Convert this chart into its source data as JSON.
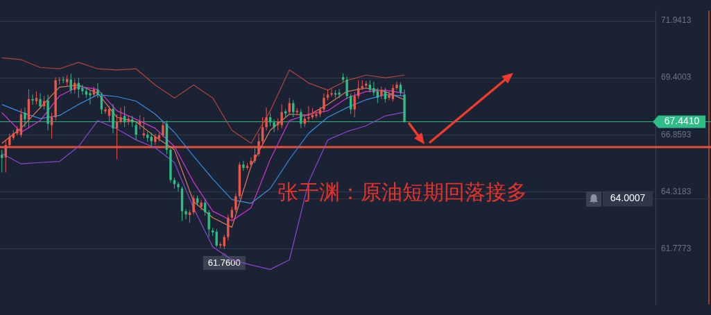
{
  "chart_data": {
    "type": "candlestick",
    "categories": [
      null,
      null,
      null,
      null,
      null,
      null,
      null,
      null,
      null,
      null,
      null,
      null,
      null,
      null,
      null,
      null,
      null,
      null,
      null,
      null,
      null,
      null,
      null,
      null,
      null,
      null,
      null,
      null,
      null,
      null,
      null,
      null,
      null,
      null,
      null,
      null,
      null,
      null,
      null,
      null,
      null,
      null,
      null,
      null,
      null,
      null,
      null,
      null,
      null,
      null,
      null,
      null,
      null,
      null,
      null,
      null,
      null,
      null,
      null,
      null,
      null,
      null,
      null,
      null,
      null,
      null,
      null,
      null,
      null,
      null,
      null,
      null,
      null,
      null,
      null,
      null,
      null,
      null,
      null,
      null,
      null,
      null,
      null,
      null,
      null,
      null,
      null,
      null,
      null,
      null,
      null,
      null,
      null,
      null,
      null,
      null,
      null,
      null,
      null,
      null,
      null,
      null,
      null,
      null,
      null,
      null,
      null,
      null,
      null,
      null,
      null,
      null,
      null,
      null,
      null,
      null,
      null,
      null,
      null,
      null,
      null,
      null,
      null,
      null,
      null,
      null,
      null,
      null,
      null,
      null,
      null,
      null,
      null,
      null,
      null,
      null,
      null,
      null,
      null,
      null,
      null,
      null,
      null,
      null,
      null,
      null,
      null,
      null,
      null,
      null,
      null,
      null,
      null,
      null,
      null,
      null,
      null,
      null,
      null,
      null,
      null,
      null,
      null,
      null,
      null,
      null,
      null,
      null,
      null,
      null,
      null
    ],
    "ohlc": [
      [
        65.97,
        66.19,
        65.18,
        65.82
      ],
      [
        65.85,
        66.63,
        65.18,
        66.4
      ],
      [
        66.4,
        66.92,
        66.28,
        66.77
      ],
      [
        66.72,
        67.06,
        66.63,
        66.92
      ],
      [
        66.92,
        67.25,
        66.85,
        67.12
      ],
      [
        66.86,
        68.02,
        66.75,
        67.78
      ],
      [
        67.84,
        68.07,
        67.2,
        67.55
      ],
      [
        67.55,
        68.88,
        67.15,
        68.45
      ],
      [
        68.45,
        68.65,
        68.2,
        68.39
      ],
      [
        68.36,
        68.8,
        68.2,
        68.5
      ],
      [
        68.45,
        68.71,
        68.02,
        68.13
      ],
      [
        68.13,
        68.59,
        67.98,
        68.36
      ],
      [
        68.39,
        68.65,
        67.06,
        67.35
      ],
      [
        67.29,
        67.84,
        66.69,
        67.64
      ],
      [
        67.64,
        69.43,
        67.49,
        69.29
      ],
      [
        69.29,
        69.43,
        69.1,
        69.32
      ],
      [
        69.32,
        69.46,
        69.15,
        69.3
      ],
      [
        69.2,
        69.52,
        69.05,
        69.35
      ],
      [
        69.32,
        69.58,
        68.7,
        68.86
      ],
      [
        68.86,
        69.35,
        68.7,
        69.17
      ],
      [
        69.17,
        69.4,
        68.51,
        68.88
      ],
      [
        68.95,
        69.1,
        68.65,
        68.8
      ],
      [
        68.8,
        68.95,
        68.5,
        68.65
      ],
      [
        68.71,
        68.85,
        68.22,
        68.62
      ],
      [
        68.65,
        69.0,
        68.55,
        68.88
      ],
      [
        68.86,
        69.17,
        68.5,
        68.65
      ],
      [
        68.59,
        68.75,
        67.78,
        67.99
      ],
      [
        67.9,
        68.1,
        67.8,
        67.99
      ],
      [
        67.7,
        68.15,
        67.44,
        68.02
      ],
      [
        68.02,
        68.22,
        66.92,
        67.15
      ],
      [
        67.15,
        67.78,
        65.76,
        67.44
      ],
      [
        67.44,
        68.07,
        67.35,
        67.64
      ],
      [
        67.7,
        68.13,
        67.2,
        67.41
      ],
      [
        67.44,
        67.73,
        67.3,
        67.58
      ],
      [
        67.55,
        67.7,
        67.2,
        67.41
      ],
      [
        67.29,
        67.49,
        66.63,
        66.86
      ],
      [
        67.32,
        67.73,
        67.1,
        67.44
      ],
      [
        66.83,
        67.64,
        66.7,
        66.92
      ],
      [
        66.86,
        67.0,
        66.55,
        66.72
      ],
      [
        66.77,
        66.95,
        66.34,
        66.57
      ],
      [
        66.54,
        66.9,
        66.4,
        66.77
      ],
      [
        66.69,
        66.95,
        66.55,
        66.83
      ],
      [
        66.83,
        67.44,
        66.75,
        67.29
      ],
      [
        67.35,
        67.49,
        65.99,
        66.19
      ],
      [
        66.19,
        66.25,
        64.72,
        64.84
      ],
      [
        64.84,
        64.95,
        64.46,
        64.66
      ],
      [
        64.66,
        64.75,
        64.32,
        64.52
      ],
      [
        64.46,
        64.55,
        63.02,
        63.45
      ],
      [
        63.45,
        63.55,
        63.1,
        63.31
      ],
      [
        63.28,
        63.5,
        62.93,
        63.4
      ],
      [
        63.4,
        64.17,
        63.3,
        64.03
      ],
      [
        64.03,
        64.15,
        63.7,
        63.83
      ],
      [
        63.65,
        63.95,
        63.5,
        63.83
      ],
      [
        63.83,
        64.0,
        63.25,
        63.4
      ],
      [
        63.4,
        63.5,
        62.3,
        62.64
      ],
      [
        62.59,
        62.7,
        62.35,
        62.5
      ],
      [
        62.53,
        62.65,
        61.85,
        61.92
      ],
      [
        61.92,
        62.05,
        61.8,
        61.98
      ],
      [
        61.89,
        62.4,
        61.76,
        62.3
      ],
      [
        62.3,
        63.3,
        62.15,
        63.16
      ],
      [
        63.16,
        63.65,
        63.05,
        63.51
      ],
      [
        63.51,
        64.25,
        63.4,
        64.12
      ],
      [
        64.12,
        65.65,
        64.0,
        65.53
      ],
      [
        65.53,
        65.7,
        65.25,
        65.38
      ],
      [
        65.38,
        65.6,
        65.3,
        65.47
      ],
      [
        65.53,
        65.85,
        65.4,
        65.7
      ],
      [
        65.7,
        66.25,
        65.6,
        65.97
      ],
      [
        66.0,
        66.92,
        65.9,
        66.57
      ],
      [
        66.57,
        67.64,
        66.45,
        67.2
      ],
      [
        67.2,
        68.07,
        67.05,
        67.64
      ],
      [
        67.64,
        67.84,
        67.25,
        67.41
      ],
      [
        67.41,
        67.55,
        66.98,
        67.2
      ],
      [
        67.29,
        67.6,
        67.06,
        67.44
      ],
      [
        67.29,
        68.22,
        67.15,
        67.87
      ],
      [
        67.9,
        68.0,
        67.65,
        67.81
      ],
      [
        67.87,
        68.51,
        67.75,
        68.27
      ],
      [
        68.27,
        68.4,
        67.64,
        67.87
      ],
      [
        67.87,
        68.05,
        67.75,
        67.93
      ],
      [
        67.87,
        68.0,
        67.15,
        67.35
      ],
      [
        67.35,
        67.75,
        67.2,
        67.58
      ],
      [
        67.58,
        68.13,
        67.45,
        67.64
      ],
      [
        67.64,
        68.05,
        67.55,
        67.75
      ],
      [
        67.7,
        67.95,
        67.6,
        67.78
      ],
      [
        67.78,
        68.1,
        67.65,
        67.99
      ],
      [
        67.99,
        68.7,
        67.85,
        68.51
      ],
      [
        68.51,
        68.88,
        68.4,
        68.65
      ],
      [
        68.65,
        68.9,
        68.55,
        68.71
      ],
      [
        68.71,
        68.85,
        68.5,
        68.65
      ],
      [
        68.74,
        68.9,
        68.5,
        68.65
      ],
      [
        69.43,
        69.6,
        69.2,
        69.32
      ],
      [
        69.32,
        69.45,
        68.45,
        68.59
      ],
      [
        68.59,
        68.7,
        67.78,
        67.99
      ],
      [
        67.99,
        68.75,
        67.64,
        68.59
      ],
      [
        68.59,
        69.29,
        68.45,
        68.94
      ],
      [
        68.94,
        69.29,
        68.85,
        69.03
      ],
      [
        69.05,
        69.25,
        68.95,
        69.14
      ],
      [
        69.09,
        69.29,
        68.75,
        68.86
      ],
      [
        68.94,
        69.23,
        68.6,
        68.74
      ],
      [
        68.8,
        68.95,
        68.27,
        68.51
      ],
      [
        68.59,
        69.0,
        68.45,
        68.86
      ],
      [
        68.8,
        68.95,
        68.3,
        68.45
      ],
      [
        68.51,
        68.8,
        68.4,
        68.65
      ],
      [
        68.45,
        69.1,
        68.35,
        68.94
      ],
      [
        68.94,
        69.23,
        68.85,
        69.09
      ],
      [
        69.09,
        69.2,
        68.6,
        68.74
      ],
      [
        68.65,
        68.88,
        67.4,
        67.441
      ],
      null,
      null,
      null,
      null,
      null,
      null,
      null,
      null,
      null,
      null,
      null,
      null,
      null,
      null,
      null,
      null,
      null,
      null,
      null,
      null,
      null,
      null,
      null,
      null,
      null,
      null,
      null,
      null,
      null,
      null,
      null,
      null,
      null,
      null,
      null,
      null,
      null,
      null,
      null,
      null,
      null,
      null,
      null,
      null,
      null,
      null,
      null,
      null,
      null,
      null,
      null,
      null,
      null,
      null,
      null,
      null,
      null,
      null,
      null,
      null,
      null,
      null,
      null,
      null,
      null
    ],
    "series": [
      {
        "type": "line",
        "color": "#b5443a",
        "values": [
          70.29,
          null,
          null,
          null,
          null,
          70.21,
          null,
          null,
          null,
          null,
          69.86,
          null,
          null,
          null,
          null,
          69.8,
          null,
          null,
          null,
          null,
          70.09,
          null,
          null,
          null,
          null,
          69.8,
          null,
          null,
          null,
          null,
          69.75,
          null,
          null,
          null,
          null,
          69.8,
          null,
          null,
          null,
          null,
          69.08,
          null,
          null,
          null,
          null,
          68.5,
          null,
          null,
          null,
          null,
          69.08,
          null,
          null,
          null,
          null,
          68.5,
          null,
          null,
          null,
          null,
          67.06,
          null,
          null,
          null,
          null,
          66.48,
          null,
          null,
          null,
          null,
          67.93,
          null,
          null,
          null,
          null,
          69.75,
          null,
          null,
          null,
          null,
          69.17,
          null,
          null,
          null,
          null,
          68.85,
          null,
          null,
          null,
          null,
          69.28,
          null,
          null,
          null,
          null,
          69.52,
          null,
          null,
          null,
          null,
          69.4,
          null,
          null,
          null,
          null,
          69.52,
          null,
          null,
          null,
          null,
          null,
          null,
          null,
          null,
          null,
          null,
          null,
          null,
          null,
          null,
          null,
          null,
          null,
          null,
          null,
          null,
          null,
          null,
          null,
          null,
          null,
          null,
          null,
          null,
          null,
          null,
          null,
          null,
          null,
          null,
          null,
          null,
          null,
          null,
          null,
          null,
          null,
          null,
          null,
          null,
          null,
          null,
          null,
          null,
          null,
          null,
          null,
          null,
          null,
          null,
          null,
          null,
          null,
          null,
          null,
          null,
          null,
          null,
          null,
          null,
          null
        ]
      },
      {
        "type": "line",
        "color": "#8b46d6",
        "values": [
          66.02,
          null,
          null,
          null,
          null,
          65.56,
          null,
          null,
          null,
          null,
          65.62,
          null,
          null,
          null,
          null,
          65.67,
          null,
          null,
          null,
          null,
          66.34,
          null,
          null,
          null,
          null,
          67.49,
          null,
          null,
          null,
          null,
          67.12,
          null,
          null,
          null,
          null,
          66.63,
          null,
          null,
          null,
          null,
          66.28,
          null,
          null,
          null,
          null,
          65.62,
          null,
          null,
          null,
          null,
          63.59,
          null,
          null,
          null,
          null,
          61.86,
          null,
          null,
          null,
          null,
          61.28,
          null,
          null,
          null,
          null,
          61.05,
          null,
          null,
          null,
          null,
          60.85,
          null,
          null,
          null,
          null,
          61.28,
          null,
          null,
          null,
          null,
          64.75,
          null,
          null,
          null,
          null,
          66.63,
          null,
          null,
          null,
          null,
          67.0,
          null,
          null,
          null,
          null,
          67.26,
          null,
          null,
          null,
          null,
          67.7,
          null,
          null,
          null,
          null,
          67.87,
          null,
          null,
          null,
          null,
          null,
          null,
          null,
          null,
          null,
          null,
          null,
          null,
          null,
          null,
          null,
          null,
          null,
          null,
          null,
          null,
          null,
          null,
          null,
          null,
          null,
          null,
          null,
          null,
          null,
          null,
          null,
          null,
          null,
          null,
          null,
          null,
          null,
          null,
          null,
          null,
          null,
          null,
          null,
          null,
          null,
          null,
          null,
          null,
          null,
          null,
          null,
          null,
          null,
          null,
          null,
          null,
          null,
          null,
          null,
          null,
          null,
          null,
          null,
          null,
          null
        ]
      },
      {
        "type": "line",
        "color": "#3a8ee6",
        "values": [
          68.21,
          null,
          null,
          null,
          null,
          67.87,
          null,
          null,
          null,
          null,
          67.58,
          null,
          null,
          null,
          null,
          67.72,
          null,
          null,
          null,
          null,
          68.21,
          null,
          null,
          null,
          null,
          68.65,
          null,
          null,
          null,
          null,
          68.56,
          null,
          null,
          null,
          null,
          68.36,
          null,
          null,
          null,
          null,
          67.78,
          null,
          null,
          null,
          null,
          66.97,
          null,
          null,
          null,
          null,
          65.9,
          null,
          null,
          null,
          null,
          64.89,
          null,
          null,
          null,
          null,
          63.97,
          null,
          null,
          null,
          null,
          63.8,
          null,
          null,
          null,
          null,
          64.46,
          null,
          null,
          null,
          null,
          65.76,
          null,
          null,
          null,
          null,
          66.92,
          null,
          null,
          null,
          null,
          67.64,
          null,
          null,
          null,
          null,
          68.07,
          null,
          null,
          null,
          null,
          68.42,
          null,
          null,
          null,
          null,
          68.65,
          null,
          null,
          null,
          null,
          68.59,
          null,
          null,
          null,
          null,
          null,
          null,
          null,
          null,
          null,
          null,
          null,
          null,
          null,
          null,
          null,
          null,
          null,
          null,
          null,
          null,
          null,
          null,
          null,
          null,
          null,
          null,
          null,
          null,
          null,
          null,
          null,
          null,
          null,
          null,
          null,
          null,
          null,
          null,
          null,
          null,
          null,
          null,
          null,
          null,
          null,
          null,
          null,
          null,
          null,
          null,
          null,
          null,
          null,
          null,
          null,
          null,
          null,
          null,
          null,
          null,
          null,
          null,
          null,
          null,
          null
        ]
      },
      {
        "type": "line",
        "color": "#d633d6",
        "values": [
          67.84,
          null,
          null,
          null,
          null,
          66.97,
          null,
          null,
          null,
          null,
          67.49,
          null,
          null,
          null,
          null,
          68.59,
          null,
          null,
          null,
          null,
          69.02,
          null,
          null,
          null,
          null,
          68.88,
          null,
          null,
          null,
          null,
          67.93,
          null,
          null,
          null,
          null,
          67.55,
          null,
          null,
          null,
          null,
          67.15,
          null,
          null,
          null,
          null,
          66.34,
          null,
          null,
          null,
          null,
          64.75,
          null,
          null,
          null,
          null,
          63.45,
          null,
          null,
          null,
          null,
          63.02,
          null,
          null,
          null,
          null,
          63.6,
          null,
          null,
          null,
          null,
          65.76,
          null,
          null,
          null,
          null,
          67.49,
          null,
          null,
          null,
          null,
          67.78,
          null,
          null,
          null,
          null,
          67.93,
          null,
          null,
          null,
          null,
          68.5,
          null,
          null,
          null,
          null,
          68.79,
          null,
          null,
          null,
          null,
          68.85,
          null,
          null,
          null,
          null,
          68.71,
          null,
          null,
          null,
          null,
          null,
          null,
          null,
          null,
          null,
          null,
          null,
          null,
          null,
          null,
          null,
          null,
          null,
          null,
          null,
          null,
          null,
          null,
          null,
          null,
          null,
          null,
          null,
          null,
          null,
          null,
          null,
          null,
          null,
          null,
          null,
          null,
          null,
          null,
          null,
          null,
          null,
          null,
          null,
          null,
          null,
          null,
          null,
          null,
          null,
          null,
          null,
          null,
          null,
          null,
          null,
          null,
          null,
          null,
          null,
          null,
          null,
          null,
          null,
          null,
          null
        ]
      },
      {
        "type": "line",
        "color": "#e07a5f",
        "values": [
          66.48,
          null,
          null,
          null,
          null,
          67.15,
          null,
          null,
          null,
          null,
          68.07,
          null,
          null,
          null,
          null,
          68.98,
          null,
          null,
          null,
          null,
          69.08,
          null,
          null,
          null,
          null,
          68.71,
          null,
          null,
          null,
          null,
          67.64,
          null,
          null,
          null,
          null,
          67.44,
          null,
          null,
          null,
          null,
          66.77,
          null,
          null,
          null,
          null,
          66.19,
          null,
          null,
          null,
          null,
          63.88,
          null,
          null,
          null,
          null,
          63.16,
          null,
          null,
          null,
          null,
          62.73,
          null,
          null,
          null,
          null,
          65.47,
          null,
          null,
          null,
          null,
          67.06,
          null,
          null,
          null,
          null,
          67.78,
          null,
          null,
          null,
          null,
          67.73,
          null,
          null,
          null,
          null,
          68.21,
          null,
          null,
          null,
          null,
          68.79,
          null,
          null,
          null,
          null,
          68.94,
          null,
          null,
          null,
          null,
          68.79,
          null,
          null,
          null,
          null,
          68.42,
          null,
          null,
          null,
          null,
          null,
          null,
          null,
          null,
          null,
          null,
          null,
          null,
          null,
          null,
          null,
          null,
          null,
          null,
          null,
          null,
          null,
          null,
          null,
          null,
          null,
          null,
          null,
          null,
          null,
          null,
          null,
          null,
          null,
          null,
          null,
          null,
          null,
          null,
          null,
          null,
          null,
          null,
          null,
          null,
          null,
          null,
          null,
          null,
          null,
          null,
          null,
          null,
          null,
          null,
          null,
          null,
          null,
          null,
          null,
          null,
          null,
          null,
          null,
          null,
          null
        ]
      }
    ],
    "ylim": [
      59.29,
      72.4
    ],
    "yticks": [
      71.9413,
      69.4003,
      66.8593,
      64.3183,
      61.7773
    ],
    "ref_lines": [
      {
        "axis": "y",
        "value": 67.441,
        "label": "67.4410",
        "color": "#2fbd85"
      },
      {
        "axis": "y",
        "value": 66.31,
        "color": "#e8503a"
      },
      {
        "axis": "y",
        "value": 64.0007,
        "label": "64.0007",
        "color": "#2e3849"
      }
    ],
    "annotations": [
      "张于渊：原油短期回落接多",
      {
        "text": "61.7600",
        "y": 61.76
      }
    ],
    "grid": "y",
    "legend": false,
    "tick_labels": "y",
    "marker": "none"
  }
}
